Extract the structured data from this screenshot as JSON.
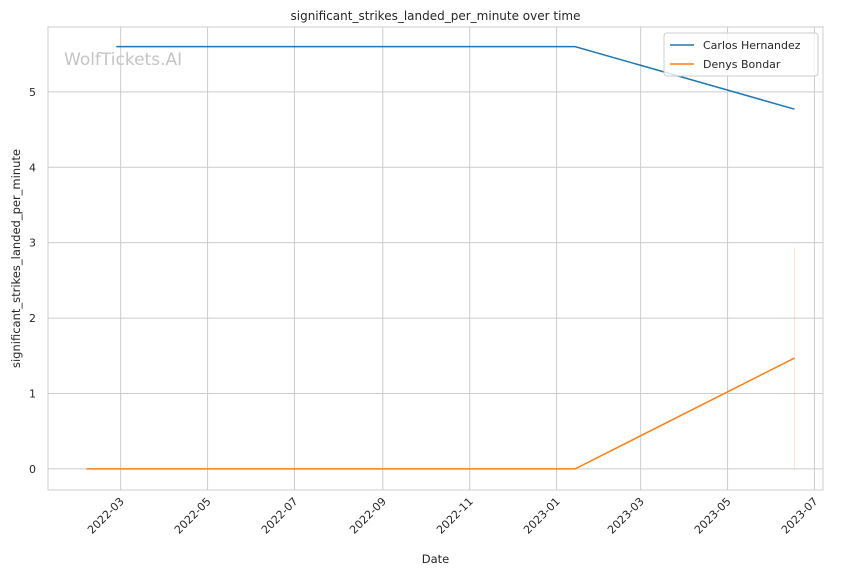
{
  "chart_data": {
    "type": "line",
    "title": "significant_strikes_landed_per_minute over time",
    "xlabel": "Date",
    "ylabel": "significant_strikes_landed_per_minute",
    "watermark": "WolfTickets.AI",
    "xlim": [
      "2022-01-09",
      "2023-07-07"
    ],
    "ylim": [
      -0.28,
      5.86
    ],
    "x_ticks": [
      "2022-03-01",
      "2022-05-01",
      "2022-07-01",
      "2022-09-01",
      "2022-11-01",
      "2023-01-01",
      "2023-03-01",
      "2023-05-01",
      "2023-07-01"
    ],
    "x_tick_labels": [
      "2022-03",
      "2022-05",
      "2022-07",
      "2022-09",
      "2022-11",
      "2023-01",
      "2023-03",
      "2023-05",
      "2023-07"
    ],
    "y_ticks": [
      0,
      1,
      2,
      3,
      4,
      5
    ],
    "y_tick_labels": [
      "0",
      "1",
      "2",
      "3",
      "4",
      "5"
    ],
    "grid": true,
    "legend_position": "top-right",
    "series": [
      {
        "name": "Carlos Hernandez",
        "color": "#1f77b4",
        "x": [
          "2022-02-26",
          "2023-01-14",
          "2023-06-17"
        ],
        "y": [
          5.6,
          5.6,
          4.77
        ]
      },
      {
        "name": "Denys Bondar",
        "color": "#ff7f0e",
        "x": [
          "2022-02-05",
          "2023-01-14",
          "2023-06-17"
        ],
        "y": [
          0.0,
          0.0,
          1.47
        ],
        "band": {
          "x": "2023-06-17",
          "low": 0.0,
          "high": 2.94
        }
      }
    ]
  }
}
